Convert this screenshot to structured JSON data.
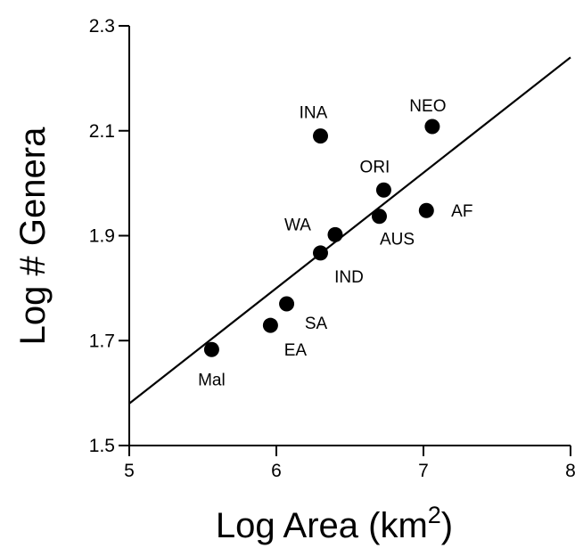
{
  "chart_data": {
    "type": "scatter",
    "title": "",
    "xlabel": "Log Area (km",
    "xlabel_sup": "2",
    "xlabel_close": ")",
    "ylabel": "Log # Genera",
    "xlim": [
      5,
      8
    ],
    "ylim": [
      1.5,
      2.3
    ],
    "x_ticks": [
      5,
      6,
      7,
      8
    ],
    "x_tick_labels": [
      "5",
      "6",
      "7",
      "8"
    ],
    "y_ticks": [
      1.5,
      1.7,
      1.9,
      2.1,
      2.3
    ],
    "y_tick_labels": [
      "1.5",
      "1.7",
      "1.9",
      "2.1",
      "2.3"
    ],
    "grid": false,
    "points": [
      {
        "label": "Mal",
        "x": 5.56,
        "y": 1.683
      },
      {
        "label": "EA",
        "x": 5.96,
        "y": 1.729
      },
      {
        "label": "SA",
        "x": 6.07,
        "y": 1.77
      },
      {
        "label": "IND",
        "x": 6.3,
        "y": 1.867
      },
      {
        "label": "WA",
        "x": 6.4,
        "y": 1.902
      },
      {
        "label": "INA",
        "x": 6.3,
        "y": 2.09
      },
      {
        "label": "AUS",
        "x": 6.7,
        "y": 1.937
      },
      {
        "label": "ORI",
        "x": 6.73,
        "y": 1.987
      },
      {
        "label": "AF",
        "x": 7.02,
        "y": 1.948
      },
      {
        "label": "NEO",
        "x": 7.06,
        "y": 2.108
      }
    ],
    "fit_line": {
      "x": [
        5,
        8
      ],
      "y": [
        1.58,
        2.24
      ]
    }
  }
}
